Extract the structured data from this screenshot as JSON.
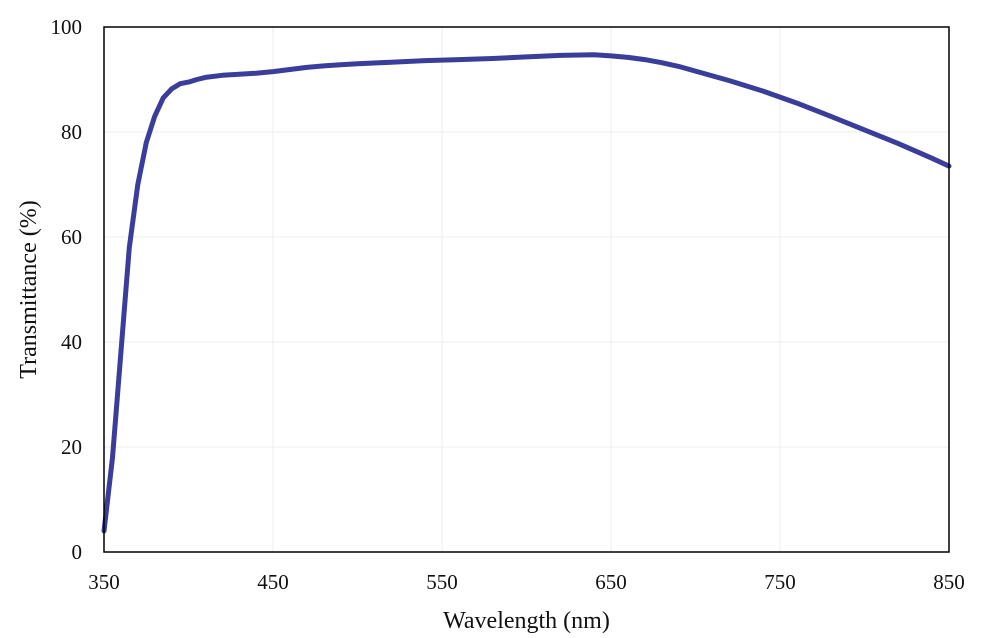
{
  "chart_data": {
    "type": "line",
    "title": "",
    "xlabel": "Wavelength (nm)",
    "ylabel": "Transmittance (%)",
    "xlim": [
      350,
      850
    ],
    "ylim": [
      0,
      100
    ],
    "xticks": [
      350,
      450,
      550,
      650,
      750,
      850
    ],
    "yticks": [
      0,
      20,
      40,
      60,
      80,
      100
    ],
    "grid": true,
    "legend": "none",
    "series": [
      {
        "color": "#3a3d9a",
        "x": [
          350,
          355,
          360,
          365,
          370,
          375,
          380,
          385,
          390,
          395,
          400,
          405,
          410,
          420,
          430,
          440,
          450,
          460,
          470,
          480,
          490,
          500,
          520,
          540,
          560,
          580,
          600,
          620,
          640,
          650,
          660,
          670,
          680,
          690,
          700,
          720,
          740,
          760,
          780,
          800,
          820,
          840,
          850
        ],
        "y": [
          4,
          18,
          38,
          58,
          70,
          78,
          83,
          86.5,
          88.2,
          89.2,
          89.5,
          90,
          90.4,
          90.8,
          91,
          91.2,
          91.5,
          91.9,
          92.3,
          92.6,
          92.8,
          93,
          93.3,
          93.6,
          93.8,
          94,
          94.3,
          94.6,
          94.7,
          94.5,
          94.2,
          93.8,
          93.2,
          92.5,
          91.6,
          89.8,
          87.8,
          85.5,
          83,
          80.4,
          77.8,
          75,
          73.5
        ]
      }
    ]
  }
}
